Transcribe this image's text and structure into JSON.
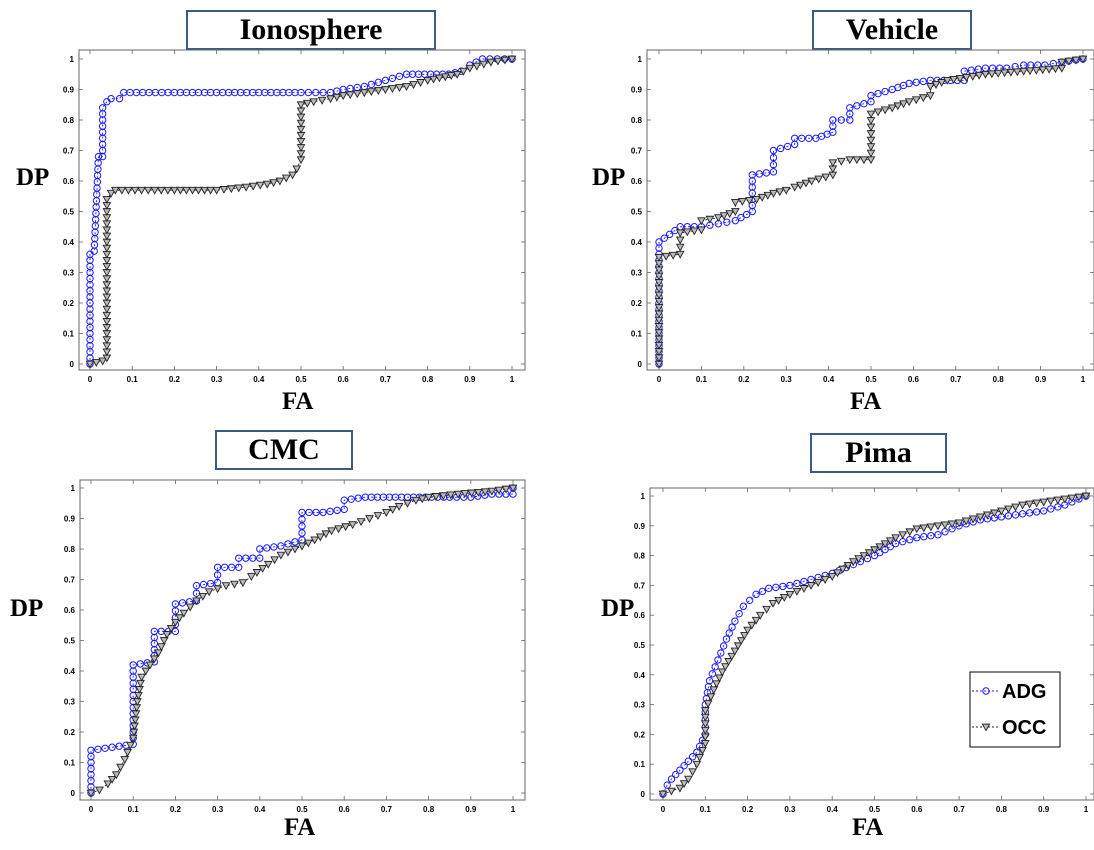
{
  "chart_data": [
    {
      "type": "line",
      "title": "Ionosphere",
      "xlabel": "FA",
      "ylabel": "DP",
      "xlim": [
        0,
        1
      ],
      "ylim": [
        0,
        1
      ],
      "x_ticks": [
        "0",
        "0.1",
        "0.2",
        "0.3",
        "0.4",
        "0.5",
        "0.6",
        "0.7",
        "0.8",
        "0.9",
        "1"
      ],
      "y_ticks": [
        "0",
        "0.1",
        "0.2",
        "0.3",
        "0.4",
        "0.5",
        "0.6",
        "0.7",
        "0.8",
        "0.9",
        "1"
      ],
      "series": [
        {
          "name": "ADG",
          "color": "#1a1aff",
          "marker": "circle",
          "points": [
            [
              0,
              0
            ],
            [
              0,
              0.36
            ],
            [
              0.01,
              0.37
            ],
            [
              0.02,
              0.68
            ],
            [
              0.03,
              0.68
            ],
            [
              0.03,
              0.84
            ],
            [
              0.04,
              0.86
            ],
            [
              0.05,
              0.87
            ],
            [
              0.07,
              0.87
            ],
            [
              0.08,
              0.89
            ],
            [
              0.2,
              0.89
            ],
            [
              0.3,
              0.89
            ],
            [
              0.4,
              0.89
            ],
            [
              0.5,
              0.89
            ],
            [
              0.57,
              0.89
            ],
            [
              0.6,
              0.9
            ],
            [
              0.65,
              0.91
            ],
            [
              0.7,
              0.93
            ],
            [
              0.75,
              0.95
            ],
            [
              0.85,
              0.95
            ],
            [
              0.88,
              0.96
            ],
            [
              0.9,
              0.98
            ],
            [
              0.93,
              1.0
            ],
            [
              1.0,
              1.0
            ]
          ]
        },
        {
          "name": "OCC",
          "color": "#222222",
          "marker": "triangle-down",
          "points": [
            [
              0,
              0
            ],
            [
              0.03,
              0.01
            ],
            [
              0.04,
              0.02
            ],
            [
              0.04,
              0.54
            ],
            [
              0.05,
              0.56
            ],
            [
              0.06,
              0.57
            ],
            [
              0.2,
              0.57
            ],
            [
              0.3,
              0.57
            ],
            [
              0.37,
              0.58
            ],
            [
              0.42,
              0.59
            ],
            [
              0.45,
              0.6
            ],
            [
              0.48,
              0.62
            ],
            [
              0.49,
              0.64
            ],
            [
              0.5,
              0.67
            ],
            [
              0.5,
              0.85
            ],
            [
              0.53,
              0.86
            ],
            [
              0.57,
              0.87
            ],
            [
              0.6,
              0.88
            ],
            [
              0.65,
              0.89
            ],
            [
              0.7,
              0.9
            ],
            [
              0.75,
              0.91
            ],
            [
              0.8,
              0.93
            ],
            [
              0.87,
              0.95
            ],
            [
              0.9,
              0.97
            ],
            [
              0.95,
              0.99
            ],
            [
              1.0,
              1.0
            ]
          ]
        }
      ]
    },
    {
      "type": "line",
      "title": "Vehicle",
      "xlabel": "FA",
      "ylabel": "DP",
      "xlim": [
        0,
        1
      ],
      "ylim": [
        0,
        1
      ],
      "x_ticks": [
        "0",
        "0.1",
        "0.2",
        "0.3",
        "0.4",
        "0.5",
        "0.6",
        "0.7",
        "0.8",
        "0.9",
        "1"
      ],
      "y_ticks": [
        "0",
        "0.1",
        "0.2",
        "0.3",
        "0.4",
        "0.5",
        "0.6",
        "0.7",
        "0.8",
        "0.9",
        "1"
      ],
      "series": [
        {
          "name": "ADG",
          "color": "#1a1aff",
          "marker": "circle",
          "points": [
            [
              0,
              0
            ],
            [
              0,
              0.4
            ],
            [
              0.05,
              0.45
            ],
            [
              0.1,
              0.45
            ],
            [
              0.14,
              0.46
            ],
            [
              0.18,
              0.47
            ],
            [
              0.22,
              0.5
            ],
            [
              0.22,
              0.62
            ],
            [
              0.27,
              0.63
            ],
            [
              0.27,
              0.7
            ],
            [
              0.32,
              0.72
            ],
            [
              0.32,
              0.74
            ],
            [
              0.37,
              0.74
            ],
            [
              0.41,
              0.76
            ],
            [
              0.41,
              0.8
            ],
            [
              0.45,
              0.8
            ],
            [
              0.45,
              0.84
            ],
            [
              0.5,
              0.86
            ],
            [
              0.5,
              0.88
            ],
            [
              0.55,
              0.9
            ],
            [
              0.59,
              0.92
            ],
            [
              0.64,
              0.93
            ],
            [
              0.72,
              0.93
            ],
            [
              0.72,
              0.96
            ],
            [
              0.77,
              0.97
            ],
            [
              0.82,
              0.97
            ],
            [
              0.86,
              0.98
            ],
            [
              0.91,
              0.98
            ],
            [
              0.95,
              0.99
            ],
            [
              1.0,
              1.0
            ]
          ]
        },
        {
          "name": "OCC",
          "color": "#222222",
          "marker": "triangle-down",
          "points": [
            [
              0,
              0
            ],
            [
              0,
              0.35
            ],
            [
              0.05,
              0.36
            ],
            [
              0.05,
              0.43
            ],
            [
              0.1,
              0.44
            ],
            [
              0.1,
              0.47
            ],
            [
              0.14,
              0.48
            ],
            [
              0.18,
              0.5
            ],
            [
              0.18,
              0.53
            ],
            [
              0.23,
              0.54
            ],
            [
              0.27,
              0.56
            ],
            [
              0.3,
              0.57
            ],
            [
              0.32,
              0.58
            ],
            [
              0.36,
              0.6
            ],
            [
              0.41,
              0.62
            ],
            [
              0.41,
              0.66
            ],
            [
              0.45,
              0.67
            ],
            [
              0.5,
              0.67
            ],
            [
              0.5,
              0.82
            ],
            [
              0.55,
              0.84
            ],
            [
              0.59,
              0.86
            ],
            [
              0.64,
              0.88
            ],
            [
              0.64,
              0.91
            ],
            [
              0.68,
              0.93
            ],
            [
              0.77,
              0.95
            ],
            [
              0.86,
              0.96
            ],
            [
              0.95,
              0.97
            ],
            [
              0.95,
              0.99
            ],
            [
              1.0,
              1.0
            ]
          ]
        }
      ]
    },
    {
      "type": "line",
      "title": "CMC",
      "xlabel": "FA",
      "ylabel": "DP",
      "xlim": [
        0,
        1
      ],
      "ylim": [
        0,
        1
      ],
      "x_ticks": [
        "0",
        "0.1",
        "0.2",
        "0.3",
        "0.4",
        "0.5",
        "0.6",
        "0.7",
        "0.8",
        "0.9",
        "1"
      ],
      "y_ticks": [
        "0",
        "0.1",
        "0.2",
        "0.3",
        "0.4",
        "0.5",
        "0.6",
        "0.7",
        "0.8",
        "0.9",
        "1"
      ],
      "series": [
        {
          "name": "ADG",
          "color": "#1a1aff",
          "marker": "circle",
          "points": [
            [
              0,
              0
            ],
            [
              0,
              0.14
            ],
            [
              0.05,
              0.15
            ],
            [
              0.1,
              0.16
            ],
            [
              0.1,
              0.42
            ],
            [
              0.15,
              0.43
            ],
            [
              0.15,
              0.53
            ],
            [
              0.2,
              0.53
            ],
            [
              0.2,
              0.62
            ],
            [
              0.25,
              0.63
            ],
            [
              0.25,
              0.68
            ],
            [
              0.3,
              0.69
            ],
            [
              0.3,
              0.74
            ],
            [
              0.35,
              0.74
            ],
            [
              0.35,
              0.77
            ],
            [
              0.4,
              0.77
            ],
            [
              0.4,
              0.8
            ],
            [
              0.45,
              0.81
            ],
            [
              0.5,
              0.83
            ],
            [
              0.5,
              0.92
            ],
            [
              0.55,
              0.92
            ],
            [
              0.6,
              0.93
            ],
            [
              0.6,
              0.96
            ],
            [
              0.65,
              0.97
            ],
            [
              0.75,
              0.97
            ],
            [
              0.85,
              0.97
            ],
            [
              0.9,
              0.97
            ],
            [
              0.95,
              0.98
            ],
            [
              1.0,
              0.98
            ],
            [
              1.0,
              1.0
            ]
          ]
        },
        {
          "name": "OCC",
          "color": "#222222",
          "marker": "triangle-down",
          "points": [
            [
              0,
              0
            ],
            [
              0.02,
              0.01
            ],
            [
              0.04,
              0.03
            ],
            [
              0.06,
              0.06
            ],
            [
              0.08,
              0.11
            ],
            [
              0.1,
              0.18
            ],
            [
              0.11,
              0.3
            ],
            [
              0.12,
              0.38
            ],
            [
              0.14,
              0.42
            ],
            [
              0.16,
              0.46
            ],
            [
              0.18,
              0.52
            ],
            [
              0.2,
              0.56
            ],
            [
              0.22,
              0.59
            ],
            [
              0.25,
              0.63
            ],
            [
              0.28,
              0.66
            ],
            [
              0.32,
              0.68
            ],
            [
              0.36,
              0.69
            ],
            [
              0.38,
              0.71
            ],
            [
              0.42,
              0.75
            ],
            [
              0.45,
              0.78
            ],
            [
              0.5,
              0.81
            ],
            [
              0.53,
              0.83
            ],
            [
              0.57,
              0.86
            ],
            [
              0.62,
              0.88
            ],
            [
              0.66,
              0.9
            ],
            [
              0.7,
              0.92
            ],
            [
              0.73,
              0.94
            ],
            [
              0.77,
              0.96
            ],
            [
              0.8,
              0.97
            ],
            [
              0.87,
              0.98
            ],
            [
              0.95,
              0.99
            ],
            [
              1.0,
              1.0
            ]
          ]
        }
      ]
    },
    {
      "type": "line",
      "title": "Pima",
      "xlabel": "FA",
      "ylabel": "DP",
      "xlim": [
        0,
        1
      ],
      "ylim": [
        0,
        1
      ],
      "legend_location": "right",
      "x_ticks": [
        "0",
        "0.1",
        "0.2",
        "0.3",
        "0.4",
        "0.5",
        "0.6",
        "0.7",
        "0.8",
        "0.9",
        "1"
      ],
      "y_ticks": [
        "0",
        "0.1",
        "0.2",
        "0.3",
        "0.4",
        "0.5",
        "0.6",
        "0.7",
        "0.8",
        "0.9",
        "1"
      ],
      "series": [
        {
          "name": "ADG",
          "color": "#1a1aff",
          "marker": "circle",
          "points": [
            [
              0,
              0
            ],
            [
              0.01,
              0.03
            ],
            [
              0.02,
              0.05
            ],
            [
              0.04,
              0.08
            ],
            [
              0.06,
              0.11
            ],
            [
              0.08,
              0.14
            ],
            [
              0.1,
              0.2
            ],
            [
              0.1,
              0.3
            ],
            [
              0.11,
              0.38
            ],
            [
              0.13,
              0.45
            ],
            [
              0.15,
              0.52
            ],
            [
              0.17,
              0.58
            ],
            [
              0.19,
              0.63
            ],
            [
              0.22,
              0.67
            ],
            [
              0.25,
              0.69
            ],
            [
              0.3,
              0.7
            ],
            [
              0.35,
              0.72
            ],
            [
              0.4,
              0.74
            ],
            [
              0.45,
              0.77
            ],
            [
              0.5,
              0.8
            ],
            [
              0.55,
              0.84
            ],
            [
              0.6,
              0.86
            ],
            [
              0.65,
              0.87
            ],
            [
              0.7,
              0.9
            ],
            [
              0.75,
              0.92
            ],
            [
              0.8,
              0.93
            ],
            [
              0.85,
              0.94
            ],
            [
              0.9,
              0.95
            ],
            [
              0.95,
              0.97
            ],
            [
              1.0,
              1.0
            ]
          ]
        },
        {
          "name": "OCC",
          "color": "#222222",
          "marker": "triangle-down",
          "points": [
            [
              0,
              0
            ],
            [
              0.02,
              0.01
            ],
            [
              0.04,
              0.02
            ],
            [
              0.06,
              0.05
            ],
            [
              0.08,
              0.1
            ],
            [
              0.1,
              0.17
            ],
            [
              0.1,
              0.28
            ],
            [
              0.12,
              0.35
            ],
            [
              0.14,
              0.41
            ],
            [
              0.17,
              0.48
            ],
            [
              0.2,
              0.55
            ],
            [
              0.23,
              0.6
            ],
            [
              0.26,
              0.64
            ],
            [
              0.3,
              0.67
            ],
            [
              0.35,
              0.7
            ],
            [
              0.4,
              0.73
            ],
            [
              0.45,
              0.78
            ],
            [
              0.5,
              0.82
            ],
            [
              0.55,
              0.86
            ],
            [
              0.6,
              0.89
            ],
            [
              0.65,
              0.9
            ],
            [
              0.7,
              0.91
            ],
            [
              0.75,
              0.93
            ],
            [
              0.8,
              0.95
            ],
            [
              0.85,
              0.97
            ],
            [
              0.9,
              0.98
            ],
            [
              0.95,
              0.99
            ],
            [
              1.0,
              1.0
            ]
          ]
        }
      ],
      "legend": [
        {
          "label": "ADG",
          "color": "#1a1aff",
          "marker": "circle"
        },
        {
          "label": "OCC",
          "color": "#222222",
          "marker": "triangle-down"
        }
      ]
    }
  ]
}
